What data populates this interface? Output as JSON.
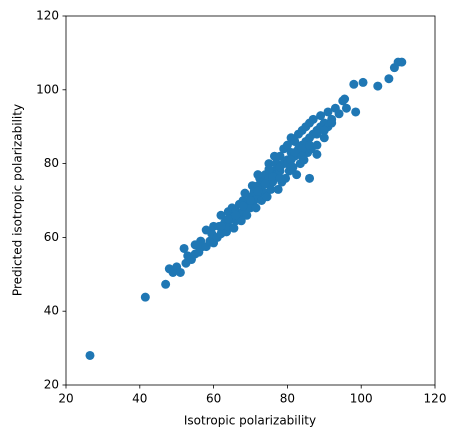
{
  "chart_data": {
    "type": "scatter",
    "x_label": "Isotropic polarizability",
    "y_label": "Predicted isotropic polarizability",
    "color": "#1f77b4",
    "xlim": [
      20,
      120
    ],
    "ylim": [
      20,
      120
    ],
    "xticks": [
      20,
      40,
      60,
      80,
      100,
      120
    ],
    "yticks": [
      20,
      40,
      60,
      80,
      100,
      120
    ],
    "x": [
      26.5,
      41.5,
      47,
      48,
      49,
      50,
      51,
      52,
      52.5,
      53,
      54,
      55,
      55,
      56,
      56.5,
      57,
      58,
      58,
      59,
      59.5,
      60,
      60,
      61,
      61.5,
      62,
      62,
      63,
      63.5,
      64,
      64,
      65,
      65,
      65.5,
      66,
      66,
      67,
      67,
      67.5,
      68,
      68,
      68.5,
      69,
      69,
      70,
      70,
      70.5,
      71,
      71,
      71.5,
      72,
      72,
      72.5,
      73,
      73,
      73.5,
      74,
      74,
      74.5,
      75,
      75,
      75.5,
      76,
      76,
      76.5,
      77,
      77,
      77.5,
      78,
      78,
      78.5,
      79,
      79,
      79.5,
      80,
      80,
      80.5,
      81,
      81,
      81.5,
      82,
      82,
      82.5,
      83,
      83,
      83.5,
      84,
      84,
      84.5,
      85,
      85,
      85.5,
      86,
      86,
      86.5,
      87,
      87,
      88,
      88,
      89,
      89,
      90,
      90,
      91,
      91,
      92,
      93,
      94,
      95,
      95.5,
      96,
      98,
      98.5,
      100.5,
      104.5,
      107.5,
      109,
      110,
      111,
      62,
      64,
      66,
      68,
      70,
      72,
      74,
      76,
      78,
      80,
      82,
      84,
      86,
      88,
      90,
      92,
      72,
      75,
      78,
      81,
      84,
      86,
      88
    ],
    "y": [
      28,
      43.8,
      47.3,
      51.5,
      50.5,
      52,
      50.5,
      57,
      53,
      55,
      54,
      58,
      55.5,
      56,
      59,
      57.5,
      62,
      57.5,
      59,
      61,
      63,
      58.5,
      60,
      63,
      66,
      61,
      64,
      61.5,
      67,
      63,
      65,
      68,
      62.5,
      67,
      64.5,
      69,
      66,
      64.5,
      70,
      67,
      72,
      69,
      66,
      71,
      68,
      74,
      70,
      72.5,
      68,
      74,
      71,
      76,
      73,
      70,
      75,
      77,
      72,
      71,
      76,
      80,
      73,
      78,
      75,
      82,
      77,
      80,
      73,
      82,
      78,
      75,
      84,
      80,
      76,
      81,
      85,
      78,
      87,
      83,
      79,
      82,
      86,
      77,
      88,
      84,
      80,
      85,
      89,
      81,
      86,
      90,
      83,
      91,
      76,
      84,
      88,
      92,
      89,
      85,
      93,
      90,
      91,
      87,
      94,
      90,
      92,
      95,
      93.5,
      97,
      97.5,
      95,
      101.5,
      94,
      102,
      101,
      103,
      106,
      107.5,
      107.5,
      63,
      65,
      66,
      68.5,
      70,
      72.5,
      74.5,
      76.5,
      79,
      80,
      83,
      84,
      87,
      88,
      89,
      91,
      77,
      78.5,
      76,
      81,
      82,
      85,
      82.5
    ]
  }
}
